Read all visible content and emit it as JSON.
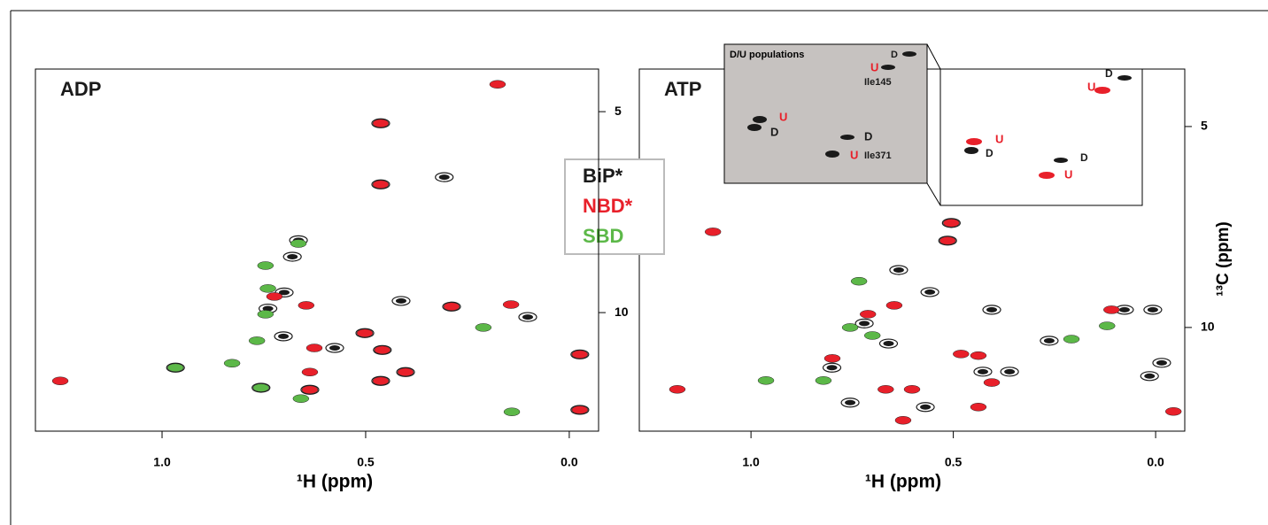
{
  "chart_data": [
    {
      "type": "scatter",
      "title": "ADP",
      "x_label": "¹H (ppm)",
      "xlim": [
        1.311,
        -0.072
      ],
      "ylim": [
        3.94,
        12.95
      ],
      "xticks": [
        {
          "value": 1,
          "label": "1.0"
        },
        0.5,
        {
          "value": 0,
          "label": "0.0"
        }
      ],
      "yticks": [
        5,
        10
      ],
      "legend": "center-right",
      "series": [
        {
          "name": "BiP*",
          "color": "#1a1a1a",
          "x": [
            0.463,
            0.463,
            0.307,
            0.967,
            0.289,
            0.413,
            0.102,
            0.459,
            0.502,
            0.702,
            0.576,
            0.68,
            0.665,
            0.757,
            0.402,
            -0.026,
            -0.026,
            0.637,
            0.463,
            0.74,
            0.7
          ],
          "y": [
            5.29,
            6.81,
            6.63,
            11.37,
            9.85,
            9.71,
            10.11,
            10.93,
            10.51,
            10.59,
            10.88,
            8.61,
            8.2,
            11.87,
            11.48,
            11.04,
            12.42,
            11.92,
            11.7,
            9.9,
            9.5
          ]
        },
        {
          "name": "NBD*",
          "color": "#e8202a",
          "x": [
            0.176,
            0.463,
            0.463,
            1.25,
            0.289,
            0.143,
            0.646,
            0.724,
            0.626,
            0.637,
            0.459,
            0.402,
            -0.026,
            -0.026,
            0.637,
            0.502,
            0.463
          ],
          "y": [
            4.32,
            5.29,
            6.81,
            11.7,
            9.85,
            9.8,
            9.82,
            9.6,
            10.88,
            11.48,
            10.93,
            11.48,
            11.04,
            12.42,
            11.92,
            10.51,
            11.7
          ]
        },
        {
          "name": "SBD",
          "color": "#5cb848",
          "x": [
            0.967,
            0.211,
            0.141,
            0.659,
            0.757,
            0.828,
            0.746,
            0.746,
            0.767,
            0.665,
            0.74
          ],
          "y": [
            11.37,
            10.37,
            12.47,
            12.14,
            11.87,
            11.26,
            8.83,
            10.04,
            10.7,
            8.28,
            9.4
          ]
        }
      ]
    },
    {
      "type": "scatter",
      "title": "ATP",
      "x_label": "¹H (ppm)",
      "y_label": "¹³C (ppm)",
      "xlim": [
        1.276,
        -0.072
      ],
      "ylim": [
        3.57,
        12.58
      ],
      "xticks": [
        {
          "value": 1,
          "label": "1.0"
        },
        0.5,
        {
          "value": 0,
          "label": "0.0"
        }
      ],
      "yticks": [
        5,
        10
      ],
      "inset": {
        "title": "D/U populations",
        "labels": [
          "D",
          "U",
          "Ile145",
          "U",
          "D",
          "D",
          "U",
          "Ile371",
          "D",
          "U",
          "U",
          "D",
          "D",
          "U"
        ]
      },
      "series": [
        {
          "color": "#1a1a1a",
          "x": [
            0.505,
            0.514,
            0.635,
            0.558,
            0.405,
            0.427,
            0.361,
            0.263,
            0.077,
            0.007,
            -0.015,
            0.015,
            0.755,
            0.569,
            0.72,
            0.66,
            0.8
          ],
          "y": [
            7.4,
            7.84,
            8.57,
            9.12,
            9.56,
            11.1,
            11.1,
            10.33,
            9.56,
            9.56,
            10.88,
            11.21,
            11.87,
            11.98,
            9.9,
            10.4,
            11.0
          ]
        },
        {
          "color": "#e8202a",
          "x": [
            0.505,
            0.514,
            0.646,
            0.711,
            0.481,
            0.438,
            0.109,
            -0.044,
            1.182,
            0.799,
            0.624,
            0.602,
            0.405,
            0.438,
            0.667,
            1.094
          ],
          "y": [
            7.4,
            7.84,
            9.45,
            9.67,
            10.66,
            10.7,
            9.56,
            12.09,
            11.54,
            10.77,
            12.31,
            11.54,
            11.37,
            11.98,
            11.54,
            7.62
          ]
        },
        {
          "color": "#5cb848",
          "x": [
            0.733,
            0.755,
            0.208,
            0.963,
            0.821,
            0.12,
            0.7
          ],
          "y": [
            8.85,
            10.0,
            10.29,
            11.32,
            11.32,
            9.96,
            10.2
          ]
        }
      ]
    }
  ]
}
